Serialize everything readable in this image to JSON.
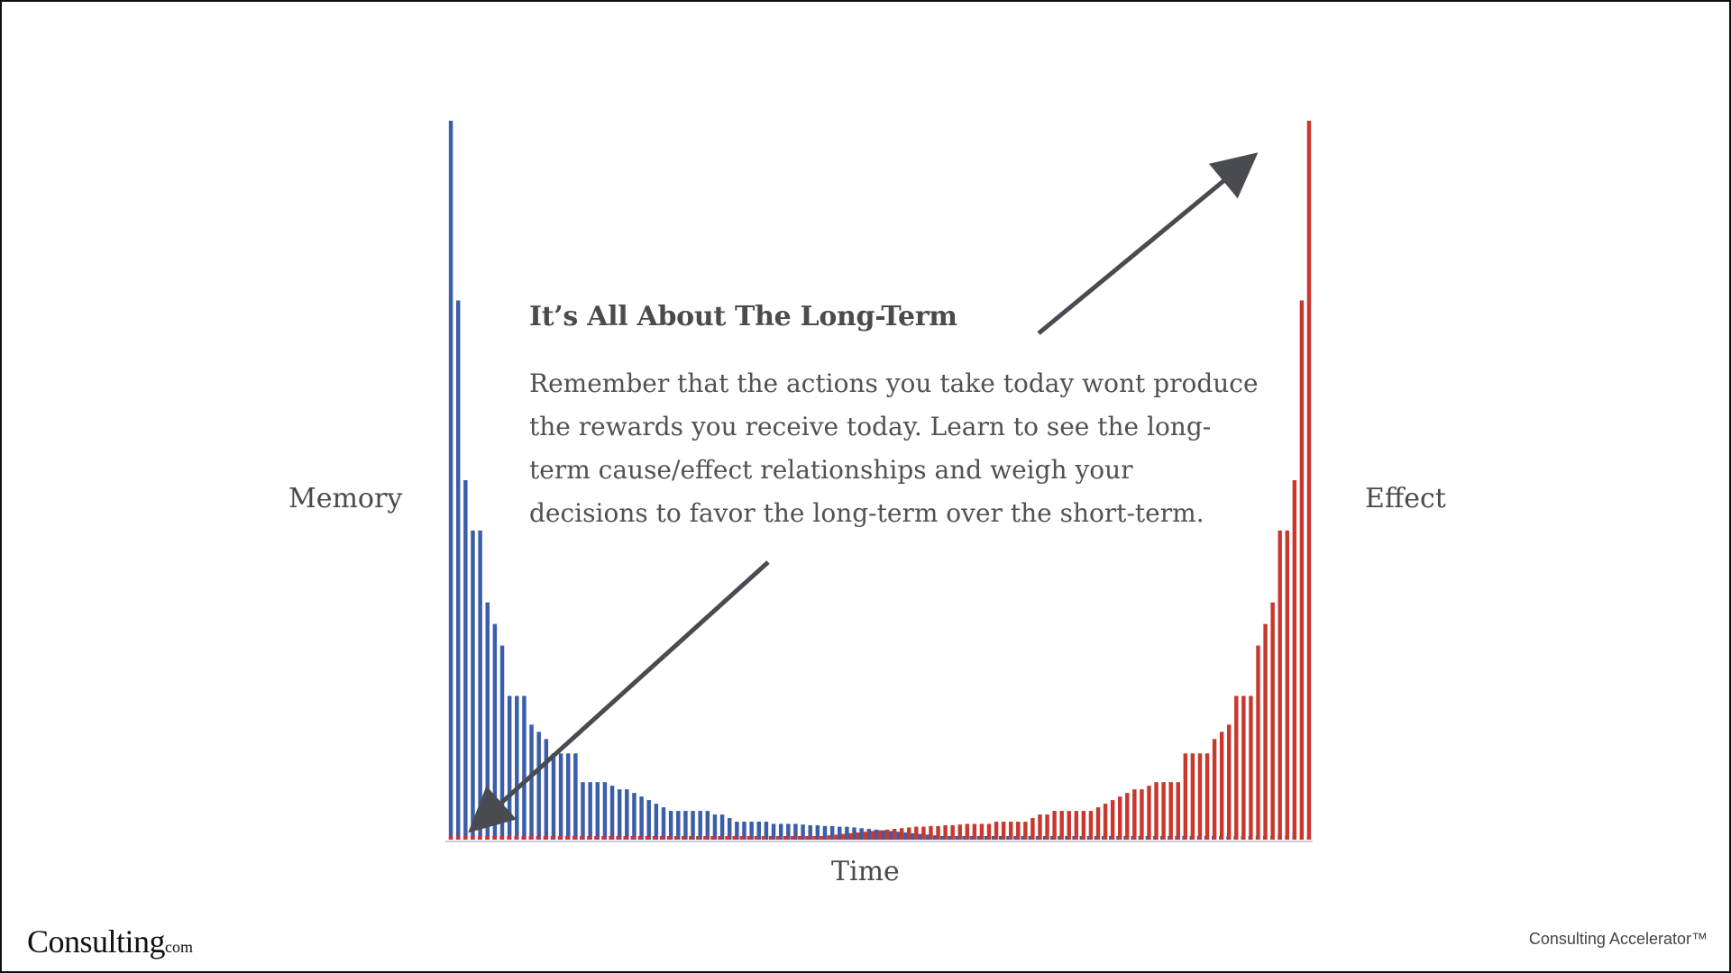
{
  "slide": {
    "heading": "It’s All About The Long-Term",
    "body": "Remember that the actions you take today wont produce the rewards you receive today. Learn to see the long-term cause/effect relationships and weigh your decisions to favor the long-term over the short-term.",
    "footer_logo_main": "Consulting",
    "footer_logo_sub": "com",
    "footer_brand": "Consulting Accelerator™"
  },
  "chart_data": {
    "type": "bar",
    "xlabel": "Time",
    "ylabel_left": "Memory",
    "ylabel_right": "Effect",
    "series": [
      {
        "color": "#3b5ea8",
        "values": [
          100,
          75,
          50,
          43,
          43,
          33,
          30,
          27,
          20,
          20,
          20,
          16,
          15,
          14,
          12,
          12,
          12,
          12,
          8,
          8,
          8,
          8,
          7.5,
          7,
          7,
          6.5,
          6,
          5.5,
          5,
          4.5,
          4,
          4,
          4,
          4,
          4,
          4,
          3.5,
          3.5,
          3,
          2.5,
          2.5,
          2.5,
          2.5,
          2.5,
          2.2,
          2.2,
          2.2,
          2.2,
          2.1,
          2.0,
          2.0,
          1.9,
          1.9,
          1.8,
          1.8,
          1.7,
          1.6,
          1.5,
          1.4,
          1.3,
          1.2,
          1.1,
          1.0,
          0.9,
          0.8,
          0.7,
          0.6,
          0.5,
          0.5,
          0.5,
          0.5,
          0.5,
          0.5,
          0.5,
          0.5,
          0.5,
          0.5,
          0.5,
          0.5,
          0.5,
          0.5,
          0.5,
          0.5,
          0.5,
          0.5,
          0.5,
          0.5,
          0.5,
          0.5,
          0.5,
          0.5,
          0.5,
          0.5,
          0.5,
          0.5,
          0.5,
          0.5,
          0.5,
          0.5,
          0.5,
          0.5,
          0.5,
          0.5,
          0.5,
          0.5,
          0.5,
          0.5,
          0.5,
          0.5,
          0.5,
          0.5,
          0.5,
          0.5,
          0.5,
          0.5,
          0.5,
          0.5,
          0.5
        ]
      },
      {
        "color": "#c8382f",
        "values": [
          0.5,
          0.5,
          0.5,
          0.5,
          0.5,
          0.5,
          0.5,
          0.5,
          0.5,
          0.5,
          0.5,
          0.5,
          0.5,
          0.5,
          0.5,
          0.5,
          0.5,
          0.5,
          0.5,
          0.5,
          0.5,
          0.5,
          0.5,
          0.5,
          0.5,
          0.5,
          0.5,
          0.5,
          0.5,
          0.5,
          0.5,
          0.5,
          0.5,
          0.5,
          0.5,
          0.5,
          0.5,
          0.5,
          0.5,
          0.5,
          0.5,
          0.5,
          0.5,
          0.5,
          0.5,
          0.5,
          0.5,
          0.5,
          0.5,
          0.5,
          0.5,
          0.5,
          0.6,
          0.7,
          0.8,
          0.9,
          1.0,
          1.1,
          1.2,
          1.3,
          1.4,
          1.5,
          1.6,
          1.7,
          1.8,
          1.8,
          1.9,
          1.9,
          2.0,
          2.0,
          2.1,
          2.2,
          2.2,
          2.2,
          2.2,
          2.5,
          2.5,
          2.5,
          2.5,
          2.5,
          3,
          3.5,
          3.5,
          4,
          4,
          4,
          4,
          4,
          4,
          4.5,
          5,
          5.5,
          6,
          6.5,
          7,
          7,
          7.5,
          8,
          8,
          8,
          8,
          12,
          12,
          12,
          12,
          14,
          15,
          16,
          20,
          20,
          20,
          27,
          30,
          33,
          43,
          43,
          50,
          75,
          100
        ]
      }
    ]
  }
}
